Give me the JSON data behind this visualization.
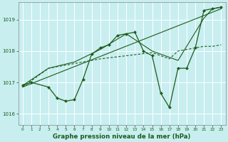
{
  "xlabel": "Graphe pression niveau de la mer (hPa)",
  "bg_color": "#c8eef0",
  "grid_color": "#ffffff",
  "line_color": "#1a5c1a",
  "tick_label_color": "#1a5c1a",
  "xlabel_color": "#1a5c1a",
  "ylim": [
    1015.65,
    1019.55
  ],
  "xlim": [
    -0.5,
    23.5
  ],
  "yticks": [
    1016,
    1017,
    1018,
    1019
  ],
  "xticks": [
    0,
    1,
    2,
    3,
    4,
    5,
    6,
    7,
    8,
    9,
    10,
    11,
    12,
    13,
    14,
    15,
    16,
    17,
    18,
    19,
    20,
    21,
    22,
    23
  ],
  "line1_x": [
    0,
    1,
    3,
    4,
    5,
    6,
    7,
    8,
    9,
    10,
    11,
    12,
    13,
    14,
    15,
    16,
    17,
    18,
    19,
    20,
    21,
    22,
    23
  ],
  "line1_y": [
    1016.9,
    1017.0,
    1016.85,
    1016.5,
    1016.4,
    1016.45,
    1017.1,
    1017.9,
    1018.1,
    1018.2,
    1018.5,
    1018.55,
    1018.6,
    1018.0,
    1017.85,
    1016.65,
    1016.2,
    1017.45,
    1017.45,
    1018.1,
    1019.3,
    1019.35,
    1019.4
  ],
  "line2_x": [
    0,
    3,
    6,
    9,
    12,
    15,
    18,
    21,
    22,
    23
  ],
  "line2_y": [
    1016.9,
    1017.45,
    1017.65,
    1018.05,
    1018.55,
    1018.0,
    1017.7,
    1019.05,
    1019.35,
    1019.4
  ],
  "line3_x": [
    0,
    23
  ],
  "line3_y": [
    1016.85,
    1019.35
  ],
  "line4_x": [
    0,
    3,
    6,
    9,
    12,
    15,
    17,
    18,
    19,
    20,
    21,
    22,
    23
  ],
  "line4_y": [
    1016.85,
    1017.45,
    1017.6,
    1017.75,
    1017.85,
    1017.95,
    1017.75,
    1018.0,
    1018.05,
    1018.1,
    1018.15,
    1018.15,
    1018.2
  ]
}
